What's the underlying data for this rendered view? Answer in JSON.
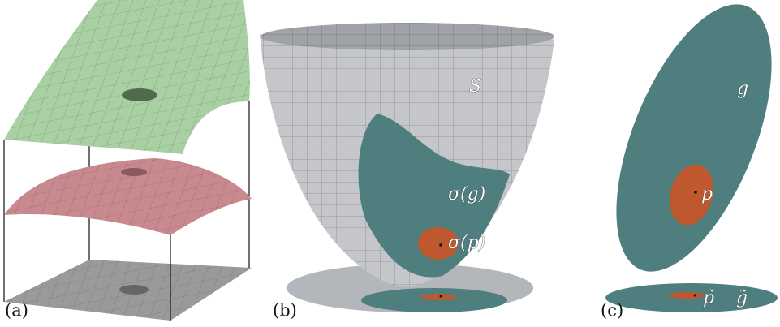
{
  "panels": [
    {
      "label": "(a)"
    },
    {
      "label": "(b)",
      "surface": "S",
      "region": "σ(g)",
      "patch": "σ(p)"
    },
    {
      "label": "(c)",
      "region": "g",
      "patch": "p",
      "projected_patch": "p̃",
      "projected_region": "g̃"
    }
  ]
}
